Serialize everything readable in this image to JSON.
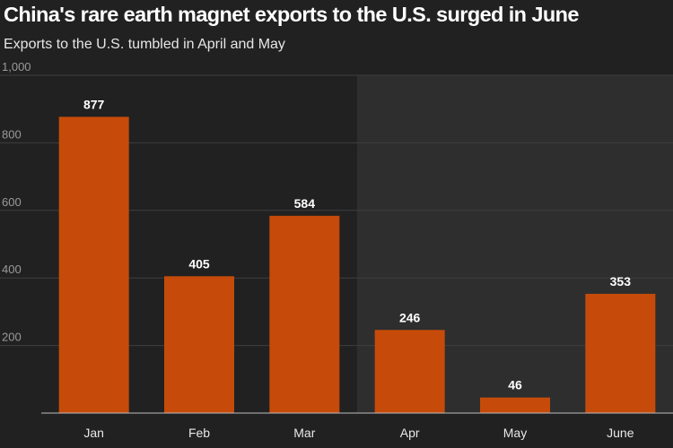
{
  "chart_data": {
    "type": "bar",
    "title": "China's rare earth magnet exports to the U.S. surged in June",
    "subtitle": "Exports to the U.S. tumbled in April and May",
    "categories": [
      "Jan",
      "Feb",
      "Mar",
      "Apr",
      "May",
      "June"
    ],
    "values": [
      877,
      405,
      584,
      246,
      46,
      353
    ],
    "data_labels": [
      "877",
      "405",
      "584",
      "246",
      "46",
      "353"
    ],
    "y_ticks": [
      {
        "value": 200,
        "label": "200"
      },
      {
        "value": 400,
        "label": "400"
      },
      {
        "value": 600,
        "label": "600"
      },
      {
        "value": 800,
        "label": "800"
      },
      {
        "value": 1000,
        "label": "1,000"
      }
    ],
    "ylim": [
      0,
      1000
    ],
    "grid": true,
    "highlight_range": [
      "Apr",
      "June"
    ],
    "legend": "none",
    "xlabel": "",
    "ylabel": ""
  },
  "colors": {
    "background": "#212121",
    "highlight": "#2e2e2e",
    "bar": "#c64b0a",
    "grid": "#3f3f3f",
    "axis": "#bdbdbd"
  }
}
